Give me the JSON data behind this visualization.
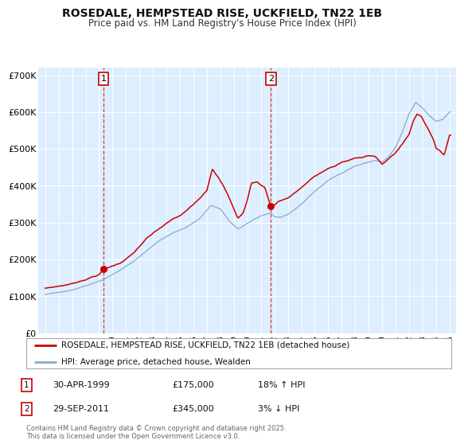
{
  "title": "ROSEDALE, HEMPSTEAD RISE, UCKFIELD, TN22 1EB",
  "subtitle": "Price paid vs. HM Land Registry's House Price Index (HPI)",
  "legend_line1": "ROSEDALE, HEMPSTEAD RISE, UCKFIELD, TN22 1EB (detached house)",
  "legend_line2": "HPI: Average price, detached house, Wealden",
  "annotation1_label": "1",
  "annotation1_date": "30-APR-1999",
  "annotation1_price": "£175,000",
  "annotation1_hpi": "18% ↑ HPI",
  "annotation1_year": 1999.33,
  "annotation1_value": 175000,
  "annotation2_label": "2",
  "annotation2_date": "29-SEP-2011",
  "annotation2_price": "£345,000",
  "annotation2_hpi": "3% ↓ HPI",
  "annotation2_year": 2011.75,
  "annotation2_value": 345000,
  "footer": "Contains HM Land Registry data © Crown copyright and database right 2025.\nThis data is licensed under the Open Government Licence v3.0.",
  "price_color": "#cc0000",
  "hpi_color": "#88aacc",
  "background_color": "#ffffff",
  "plot_bg_color": "#ddeeff",
  "grid_color": "#ffffff",
  "ylim": [
    0,
    720000
  ],
  "yticks": [
    0,
    100000,
    200000,
    300000,
    400000,
    500000,
    600000,
    700000
  ],
  "ytick_labels": [
    "£0",
    "£100K",
    "£200K",
    "£300K",
    "£400K",
    "£500K",
    "£600K",
    "£700K"
  ],
  "xlim_start": 1994.5,
  "xlim_end": 2025.5,
  "xticks": [
    1995,
    1996,
    1997,
    1998,
    1999,
    2000,
    2001,
    2002,
    2003,
    2004,
    2005,
    2006,
    2007,
    2008,
    2009,
    2010,
    2011,
    2012,
    2013,
    2014,
    2015,
    2016,
    2017,
    2018,
    2019,
    2020,
    2021,
    2022,
    2023,
    2024,
    2025
  ]
}
